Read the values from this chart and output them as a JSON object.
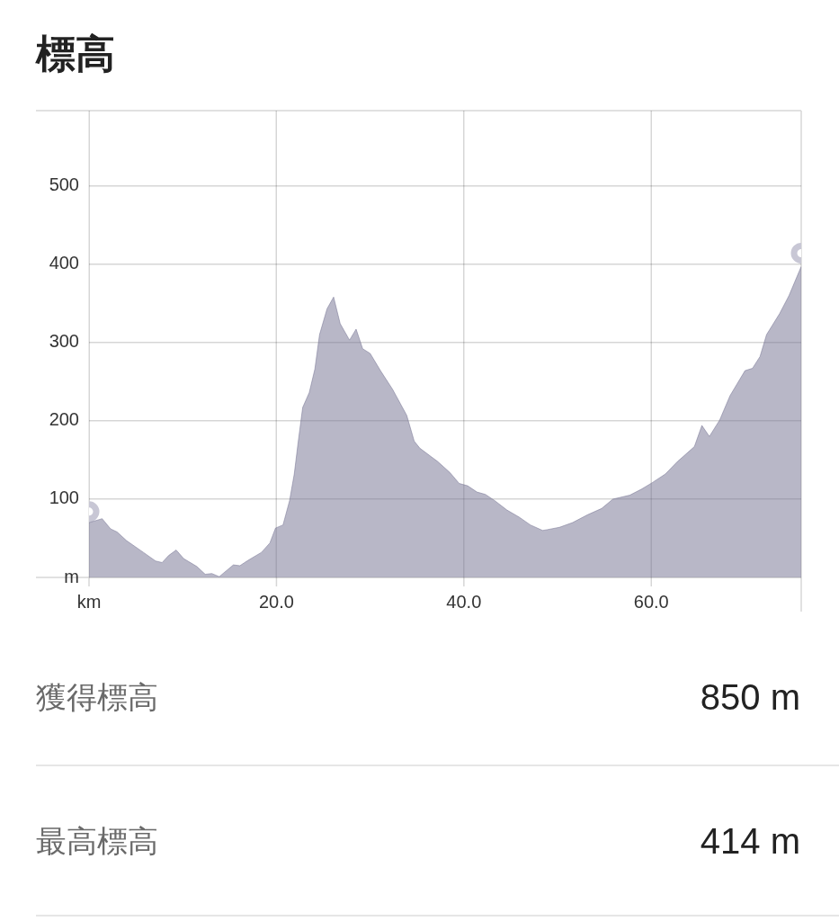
{
  "chart_data": {
    "type": "area",
    "title": "標高",
    "xlim": [
      0,
      76
    ],
    "xticks": [
      {
        "value": 0,
        "label": "km"
      },
      {
        "value": 20,
        "label": "20.0"
      },
      {
        "value": 40,
        "label": "40.0"
      },
      {
        "value": 60,
        "label": "60.0"
      }
    ],
    "ylim": [
      0,
      596
    ],
    "yticks": [
      {
        "value": 0,
        "label": "m"
      },
      100,
      200,
      300,
      400,
      500
    ],
    "grid": true,
    "series": [
      {
        "color": "#b8b7c7",
        "x": [
          0,
          1.4,
          2.3,
          3.0,
          4.0,
          5.8,
          7.1,
          7.8,
          8.5,
          9.3,
          10.1,
          11.5,
          12.4,
          13.1,
          13.9,
          14.7,
          15.4,
          16.1,
          17.0,
          18.4,
          19.3,
          19.9,
          20.7,
          21.4,
          21.9,
          22.3,
          22.8,
          23.5,
          24.1,
          24.6,
          25.4,
          26.1,
          26.8,
          27.8,
          28.5,
          29.2,
          30.0,
          31.1,
          32.4,
          33.9,
          34.7,
          35.3,
          37.2,
          38.5,
          39.5,
          40.4,
          41.4,
          42.3,
          43.3,
          44.6,
          45.9,
          47.1,
          48.4,
          48.9,
          50.2,
          51.6,
          53.2,
          54.7,
          55.9,
          57.7,
          59.0,
          60.1,
          61.5,
          62.8,
          64.6,
          65.4,
          66.2,
          67.3,
          68.4,
          70.0,
          70.8,
          71.6,
          72.3,
          73.7,
          74.7,
          76
        ],
        "values": [
          70,
          75,
          62,
          58,
          47,
          32,
          21,
          19,
          28,
          35,
          24,
          14,
          4,
          5,
          1,
          9,
          16,
          15,
          22,
          32,
          44,
          63,
          67,
          98,
          132,
          171,
          217,
          236,
          266,
          310,
          343,
          358,
          324,
          303,
          317,
          292,
          286,
          264,
          240,
          207,
          174,
          165,
          148,
          134,
          120,
          117,
          109,
          106,
          98,
          86,
          77,
          67,
          60,
          61,
          64,
          70,
          80,
          88,
          100,
          105,
          113,
          121,
          132,
          148,
          167,
          194,
          180,
          201,
          232,
          264,
          267,
          282,
          310,
          337,
          360,
          397
        ]
      },
      {
        "type": "scatter",
        "marker": "circle",
        "color": "#c8c7d5",
        "x": [
          0,
          76
        ],
        "values": [
          84,
          414
        ]
      }
    ],
    "annotations": [
      "獲得標高",
      "850 m",
      "最高標高",
      "414 m"
    ]
  }
}
